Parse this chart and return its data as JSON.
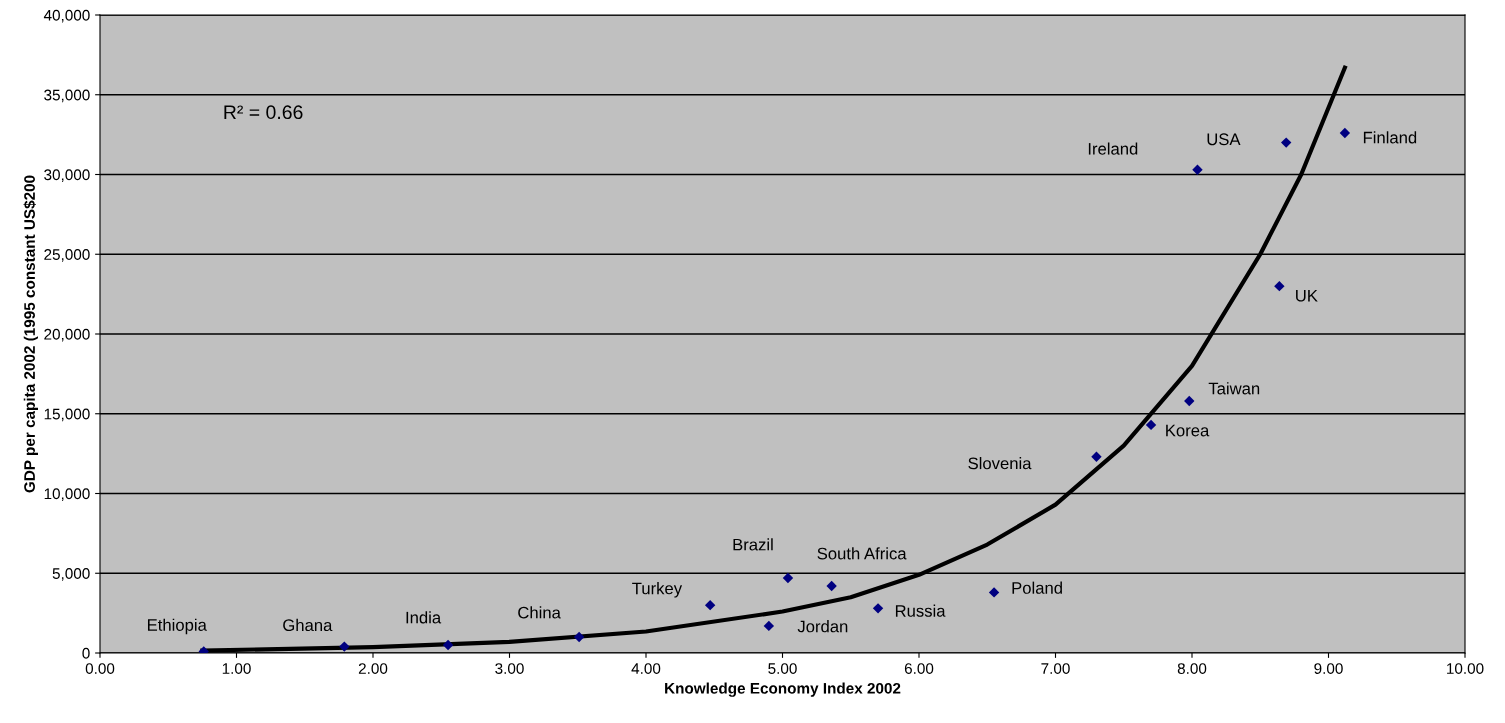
{
  "chart_data": {
    "type": "scatter",
    "xlabel": "Knowledge Economy Index 2002",
    "ylabel": "GDP per capita 2002 (1995 constant US$200",
    "x": [
      0.76,
      1.79,
      2.55,
      3.51,
      4.47,
      4.9,
      5.04,
      5.36,
      5.7,
      6.55,
      7.3,
      7.7,
      7.98,
      8.04,
      8.69,
      8.64,
      9.12
    ],
    "series": [
      {
        "color": "#000080",
        "marker": "diamond",
        "values": [
          100,
          400,
          500,
          1000,
          3000,
          1700,
          4700,
          4200,
          2800,
          3800,
          12300,
          14300,
          15800,
          30300,
          32000,
          23000,
          32600
        ]
      },
      {
        "type": "line",
        "color": "#000000",
        "marker": "none",
        "x": [
          0.75,
          2,
          3,
          4,
          5,
          5.5,
          6,
          6.5,
          7,
          7.5,
          8,
          8.5,
          8.8,
          9.12
        ],
        "values": [
          150,
          370,
          700,
          1350,
          2600,
          3500,
          4900,
          6800,
          9300,
          13000,
          18000,
          25000,
          30000,
          36700
        ]
      }
    ],
    "xlim": [
      0,
      10
    ],
    "xticks": [
      {
        "value": 0,
        "label": "0.00"
      },
      {
        "value": 1,
        "label": "1.00"
      },
      {
        "value": 2,
        "label": "2.00"
      },
      {
        "value": 3,
        "label": "3.00"
      },
      {
        "value": 4,
        "label": "4.00"
      },
      {
        "value": 5,
        "label": "5.00"
      },
      {
        "value": 6,
        "label": "6.00"
      },
      {
        "value": 7,
        "label": "7.00"
      },
      {
        "value": 8,
        "label": "8.00"
      },
      {
        "value": 9,
        "label": "9.00"
      },
      {
        "value": 10,
        "label": "10.00"
      }
    ],
    "ylim": [
      0,
      40000
    ],
    "yticks": [
      0,
      {
        "value": 5000,
        "label": "5,000"
      },
      {
        "value": 10000,
        "label": "10,000"
      },
      {
        "value": 15000,
        "label": "15,000"
      },
      {
        "value": 20000,
        "label": "20,000"
      },
      {
        "value": 25000,
        "label": "25,000"
      },
      {
        "value": 30000,
        "label": "30,000"
      },
      {
        "value": 35000,
        "label": "35,000"
      },
      {
        "value": 40000,
        "label": "40,000"
      }
    ],
    "grid": "y",
    "legend": false,
    "annotations": [
      "R² = 0.66",
      "Turkey",
      "Slovenia",
      "Ireland",
      "USA",
      {
        "text": "Ethiopia",
        "x": 0.76,
        "y": 100
      },
      {
        "text": "Ghana",
        "x": 1.79,
        "y": 400
      },
      {
        "text": "India",
        "x": 2.55,
        "y": 500
      },
      {
        "text": "China",
        "x": 3.51,
        "y": 1000
      },
      {
        "text": "Jordan",
        "x": 4.9,
        "y": 1700
      },
      {
        "text": "Brazil",
        "x": 5.04,
        "y": 4700
      },
      {
        "text": "South Africa",
        "x": 5.36,
        "y": 4200
      },
      {
        "text": "Russia",
        "x": 5.7,
        "y": 2800
      },
      {
        "text": "Poland",
        "x": 6.55,
        "y": 3800
      },
      {
        "text": "Korea",
        "x": 7.7,
        "y": 14300
      },
      {
        "text": "Taiwan",
        "x": 7.98,
        "y": 15800
      },
      {
        "text": "UK",
        "x": 8.64,
        "y": 23000
      },
      {
        "text": "Finland",
        "x": 9.12,
        "y": 32600
      }
    ]
  }
}
